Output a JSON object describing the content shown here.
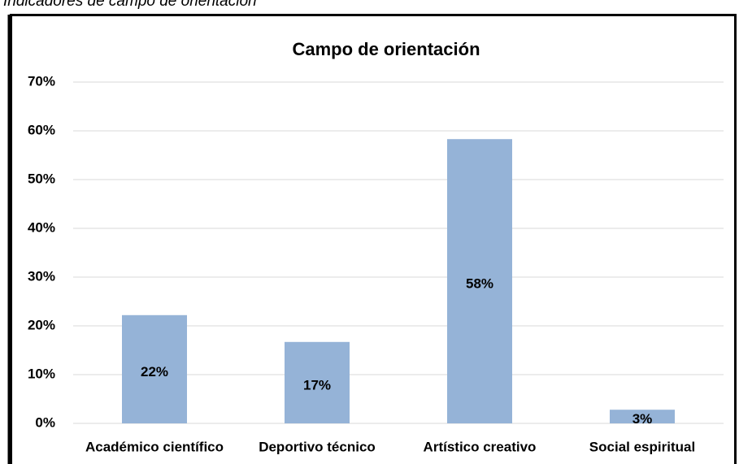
{
  "caption": "Indicadores de campo de orientación",
  "chart_data": {
    "type": "bar",
    "title": "Campo de orientación",
    "categories": [
      "Académico científico",
      "Deportivo técnico",
      "Artístico creativo",
      "Social espiritual"
    ],
    "values": [
      22.2,
      16.7,
      58.3,
      2.8
    ],
    "value_labels": [
      "22%",
      "17%",
      "58%",
      "3%"
    ],
    "color": "#95b3d7",
    "ylim": [
      0,
      70
    ],
    "yticks": [
      {
        "value": 0,
        "label": "0%"
      },
      {
        "value": 10,
        "label": "10%"
      },
      {
        "value": 20,
        "label": "20%"
      },
      {
        "value": 30,
        "label": "30%"
      },
      {
        "value": 40,
        "label": "40%"
      },
      {
        "value": 50,
        "label": "50%"
      },
      {
        "value": 60,
        "label": "60%"
      },
      {
        "value": 70,
        "label": "70%"
      }
    ],
    "grid": true
  }
}
